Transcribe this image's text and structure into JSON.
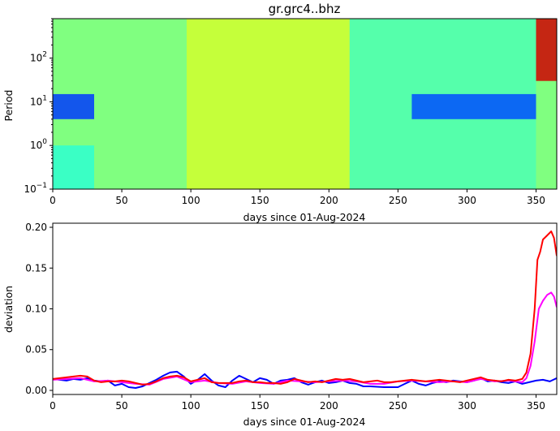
{
  "chart_data": [
    {
      "type": "heatmap",
      "title": "gr.grc4..bhz",
      "xlabel": "days since 01-Aug-2024",
      "ylabel": "Period",
      "xlim": [
        0,
        365
      ],
      "ylim": [
        0.1,
        800
      ],
      "yscale": "log",
      "x_ticks": [
        0,
        50,
        100,
        150,
        200,
        250,
        300,
        350
      ],
      "y_ticks": [
        {
          "value": 0.1,
          "base": "10",
          "exp": "−1"
        },
        {
          "value": 1,
          "base": "10",
          "exp": "0"
        },
        {
          "value": 10,
          "base": "10",
          "exp": "1"
        },
        {
          "value": 100,
          "base": "10",
          "exp": "2"
        }
      ],
      "colormap": "jet",
      "description_levels": [
        0.0,
        1.0
      ],
      "bands": [
        {
          "x_range": [
            0,
            30
          ],
          "period_range": [
            0.1,
            1
          ],
          "level": 0.42
        },
        {
          "x_range": [
            0,
            30
          ],
          "period_range": [
            4,
            15
          ],
          "level": 0.18
        },
        {
          "x_range": [
            30,
            97
          ],
          "period_range": [
            0.1,
            800
          ],
          "level": 0.5
        },
        {
          "x_range": [
            97,
            215
          ],
          "period_range": [
            0.1,
            800
          ],
          "level": 0.58
        },
        {
          "x_range": [
            215,
            350
          ],
          "period_range": [
            0.1,
            800
          ],
          "level": 0.45
        },
        {
          "x_range": [
            260,
            350
          ],
          "period_range": [
            4,
            15
          ],
          "level": 0.2
        },
        {
          "x_range": [
            350,
            365
          ],
          "period_range": [
            30,
            800
          ],
          "level": 0.92
        }
      ],
      "grid": false
    },
    {
      "type": "line",
      "title": "",
      "xlabel": "days since 01-Aug-2024",
      "ylabel": "deviation",
      "xlim": [
        0,
        365
      ],
      "ylim": [
        -0.005,
        0.205
      ],
      "x_ticks": [
        0,
        50,
        100,
        150,
        200,
        250,
        300,
        350
      ],
      "y_ticks": [
        "0.00",
        "0.05",
        "0.10",
        "0.15",
        "0.20"
      ],
      "grid": false,
      "series": [
        {
          "color": "#0000ff",
          "points": [
            [
              0,
              0.014
            ],
            [
              5,
              0.013
            ],
            [
              10,
              0.012
            ],
            [
              15,
              0.014
            ],
            [
              20,
              0.013
            ],
            [
              25,
              0.015
            ],
            [
              30,
              0.012
            ],
            [
              35,
              0.011
            ],
            [
              40,
              0.012
            ],
            [
              45,
              0.006
            ],
            [
              50,
              0.008
            ],
            [
              55,
              0.004
            ],
            [
              60,
              0.003
            ],
            [
              65,
              0.005
            ],
            [
              70,
              0.009
            ],
            [
              75,
              0.013
            ],
            [
              80,
              0.018
            ],
            [
              85,
              0.022
            ],
            [
              90,
              0.023
            ],
            [
              95,
              0.017
            ],
            [
              100,
              0.008
            ],
            [
              105,
              0.013
            ],
            [
              110,
              0.02
            ],
            [
              115,
              0.012
            ],
            [
              120,
              0.006
            ],
            [
              125,
              0.004
            ],
            [
              130,
              0.012
            ],
            [
              135,
              0.018
            ],
            [
              140,
              0.014
            ],
            [
              145,
              0.01
            ],
            [
              150,
              0.015
            ],
            [
              155,
              0.013
            ],
            [
              160,
              0.008
            ],
            [
              165,
              0.012
            ],
            [
              170,
              0.013
            ],
            [
              175,
              0.015
            ],
            [
              180,
              0.01
            ],
            [
              185,
              0.007
            ],
            [
              190,
              0.01
            ],
            [
              195,
              0.012
            ],
            [
              200,
              0.009
            ],
            [
              205,
              0.01
            ],
            [
              210,
              0.012
            ],
            [
              215,
              0.009
            ],
            [
              220,
              0.008
            ],
            [
              225,
              0.005
            ],
            [
              230,
              0.005
            ],
            [
              240,
              0.004
            ],
            [
              250,
              0.004
            ],
            [
              255,
              0.008
            ],
            [
              260,
              0.012
            ],
            [
              265,
              0.008
            ],
            [
              270,
              0.006
            ],
            [
              275,
              0.009
            ],
            [
              280,
              0.011
            ],
            [
              285,
              0.01
            ],
            [
              290,
              0.012
            ],
            [
              295,
              0.011
            ],
            [
              300,
              0.01
            ],
            [
              305,
              0.012
            ],
            [
              310,
              0.015
            ],
            [
              315,
              0.011
            ],
            [
              320,
              0.012
            ],
            [
              325,
              0.01
            ],
            [
              330,
              0.009
            ],
            [
              335,
              0.011
            ],
            [
              340,
              0.008
            ],
            [
              345,
              0.01
            ],
            [
              350,
              0.012
            ],
            [
              355,
              0.013
            ],
            [
              360,
              0.011
            ],
            [
              365,
              0.015
            ]
          ]
        },
        {
          "color": "#ff00ff",
          "points": [
            [
              0,
              0.013
            ],
            [
              10,
              0.014
            ],
            [
              20,
              0.015
            ],
            [
              30,
              0.011
            ],
            [
              40,
              0.012
            ],
            [
              50,
              0.01
            ],
            [
              60,
              0.008
            ],
            [
              70,
              0.007
            ],
            [
              80,
              0.014
            ],
            [
              90,
              0.017
            ],
            [
              100,
              0.01
            ],
            [
              110,
              0.012
            ],
            [
              120,
              0.009
            ],
            [
              130,
              0.008
            ],
            [
              140,
              0.011
            ],
            [
              150,
              0.009
            ],
            [
              160,
              0.008
            ],
            [
              170,
              0.012
            ],
            [
              180,
              0.011
            ],
            [
              190,
              0.01
            ],
            [
              200,
              0.011
            ],
            [
              210,
              0.012
            ],
            [
              220,
              0.011
            ],
            [
              230,
              0.008
            ],
            [
              240,
              0.008
            ],
            [
              250,
              0.011
            ],
            [
              260,
              0.012
            ],
            [
              270,
              0.011
            ],
            [
              280,
              0.01
            ],
            [
              290,
              0.011
            ],
            [
              300,
              0.01
            ],
            [
              310,
              0.014
            ],
            [
              320,
              0.011
            ],
            [
              330,
              0.012
            ],
            [
              340,
              0.01
            ],
            [
              343,
              0.015
            ],
            [
              346,
              0.03
            ],
            [
              349,
              0.06
            ],
            [
              352,
              0.1
            ],
            [
              355,
              0.11
            ],
            [
              358,
              0.117
            ],
            [
              361,
              0.12
            ],
            [
              363,
              0.115
            ],
            [
              365,
              0.102
            ]
          ]
        },
        {
          "color": "#ff0000",
          "points": [
            [
              0,
              0.014
            ],
            [
              5,
              0.015
            ],
            [
              10,
              0.016
            ],
            [
              15,
              0.017
            ],
            [
              20,
              0.018
            ],
            [
              25,
              0.017
            ],
            [
              30,
              0.012
            ],
            [
              35,
              0.01
            ],
            [
              40,
              0.011
            ],
            [
              45,
              0.011
            ],
            [
              50,
              0.012
            ],
            [
              55,
              0.011
            ],
            [
              60,
              0.009
            ],
            [
              65,
              0.007
            ],
            [
              70,
              0.008
            ],
            [
              75,
              0.011
            ],
            [
              80,
              0.015
            ],
            [
              85,
              0.017
            ],
            [
              90,
              0.018
            ],
            [
              95,
              0.016
            ],
            [
              100,
              0.011
            ],
            [
              105,
              0.013
            ],
            [
              110,
              0.015
            ],
            [
              115,
              0.01
            ],
            [
              120,
              0.009
            ],
            [
              125,
              0.009
            ],
            [
              130,
              0.009
            ],
            [
              135,
              0.011
            ],
            [
              140,
              0.012
            ],
            [
              145,
              0.01
            ],
            [
              150,
              0.01
            ],
            [
              155,
              0.009
            ],
            [
              160,
              0.009
            ],
            [
              165,
              0.008
            ],
            [
              170,
              0.01
            ],
            [
              175,
              0.014
            ],
            [
              180,
              0.012
            ],
            [
              185,
              0.01
            ],
            [
              190,
              0.011
            ],
            [
              195,
              0.01
            ],
            [
              200,
              0.012
            ],
            [
              205,
              0.014
            ],
            [
              210,
              0.013
            ],
            [
              215,
              0.014
            ],
            [
              220,
              0.012
            ],
            [
              225,
              0.01
            ],
            [
              230,
              0.011
            ],
            [
              235,
              0.012
            ],
            [
              240,
              0.01
            ],
            [
              245,
              0.01
            ],
            [
              250,
              0.011
            ],
            [
              255,
              0.012
            ],
            [
              260,
              0.013
            ],
            [
              265,
              0.012
            ],
            [
              270,
              0.011
            ],
            [
              275,
              0.012
            ],
            [
              280,
              0.013
            ],
            [
              285,
              0.012
            ],
            [
              290,
              0.011
            ],
            [
              295,
              0.01
            ],
            [
              300,
              0.012
            ],
            [
              305,
              0.014
            ],
            [
              310,
              0.016
            ],
            [
              315,
              0.013
            ],
            [
              320,
              0.012
            ],
            [
              325,
              0.011
            ],
            [
              330,
              0.013
            ],
            [
              335,
              0.012
            ],
            [
              340,
              0.014
            ],
            [
              343,
              0.022
            ],
            [
              346,
              0.045
            ],
            [
              349,
              0.1
            ],
            [
              351,
              0.16
            ],
            [
              353,
              0.17
            ],
            [
              355,
              0.185
            ],
            [
              358,
              0.19
            ],
            [
              361,
              0.195
            ],
            [
              363,
              0.187
            ],
            [
              365,
              0.165
            ]
          ]
        }
      ]
    }
  ]
}
